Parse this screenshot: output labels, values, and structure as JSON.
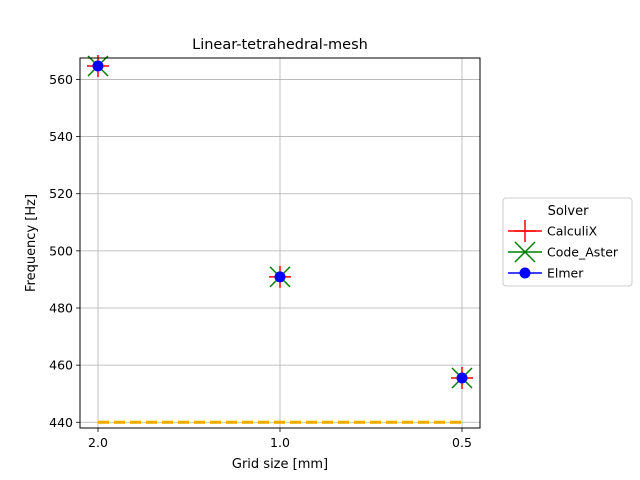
{
  "chart_data": {
    "type": "line",
    "title": "Linear-tetrahedral-mesh",
    "xlabel": "Grid size [mm]",
    "ylabel": "Frequency [Hz]",
    "categories": [
      "2.0",
      "1.0",
      "0.5"
    ],
    "ylim": [
      438,
      567.5
    ],
    "yticks": [
      440,
      460,
      480,
      500,
      520,
      540,
      560
    ],
    "grid": true,
    "legend": {
      "title": "Solver",
      "placement": "outside-right"
    },
    "series": [
      {
        "name": "CalculiX",
        "marker": "plus",
        "color": "#ff0000",
        "values": [
          564.7,
          490.9,
          455.5
        ]
      },
      {
        "name": "Code_Aster",
        "marker": "x",
        "color": "#008000",
        "values": [
          564.7,
          490.9,
          455.5
        ]
      },
      {
        "name": "Elmer",
        "marker": "circle",
        "color": "#0000ff",
        "values": [
          564.7,
          490.9,
          455.5
        ]
      }
    ],
    "reference_line": {
      "value": 440,
      "color": "#ffa500",
      "style": "dashed"
    }
  }
}
